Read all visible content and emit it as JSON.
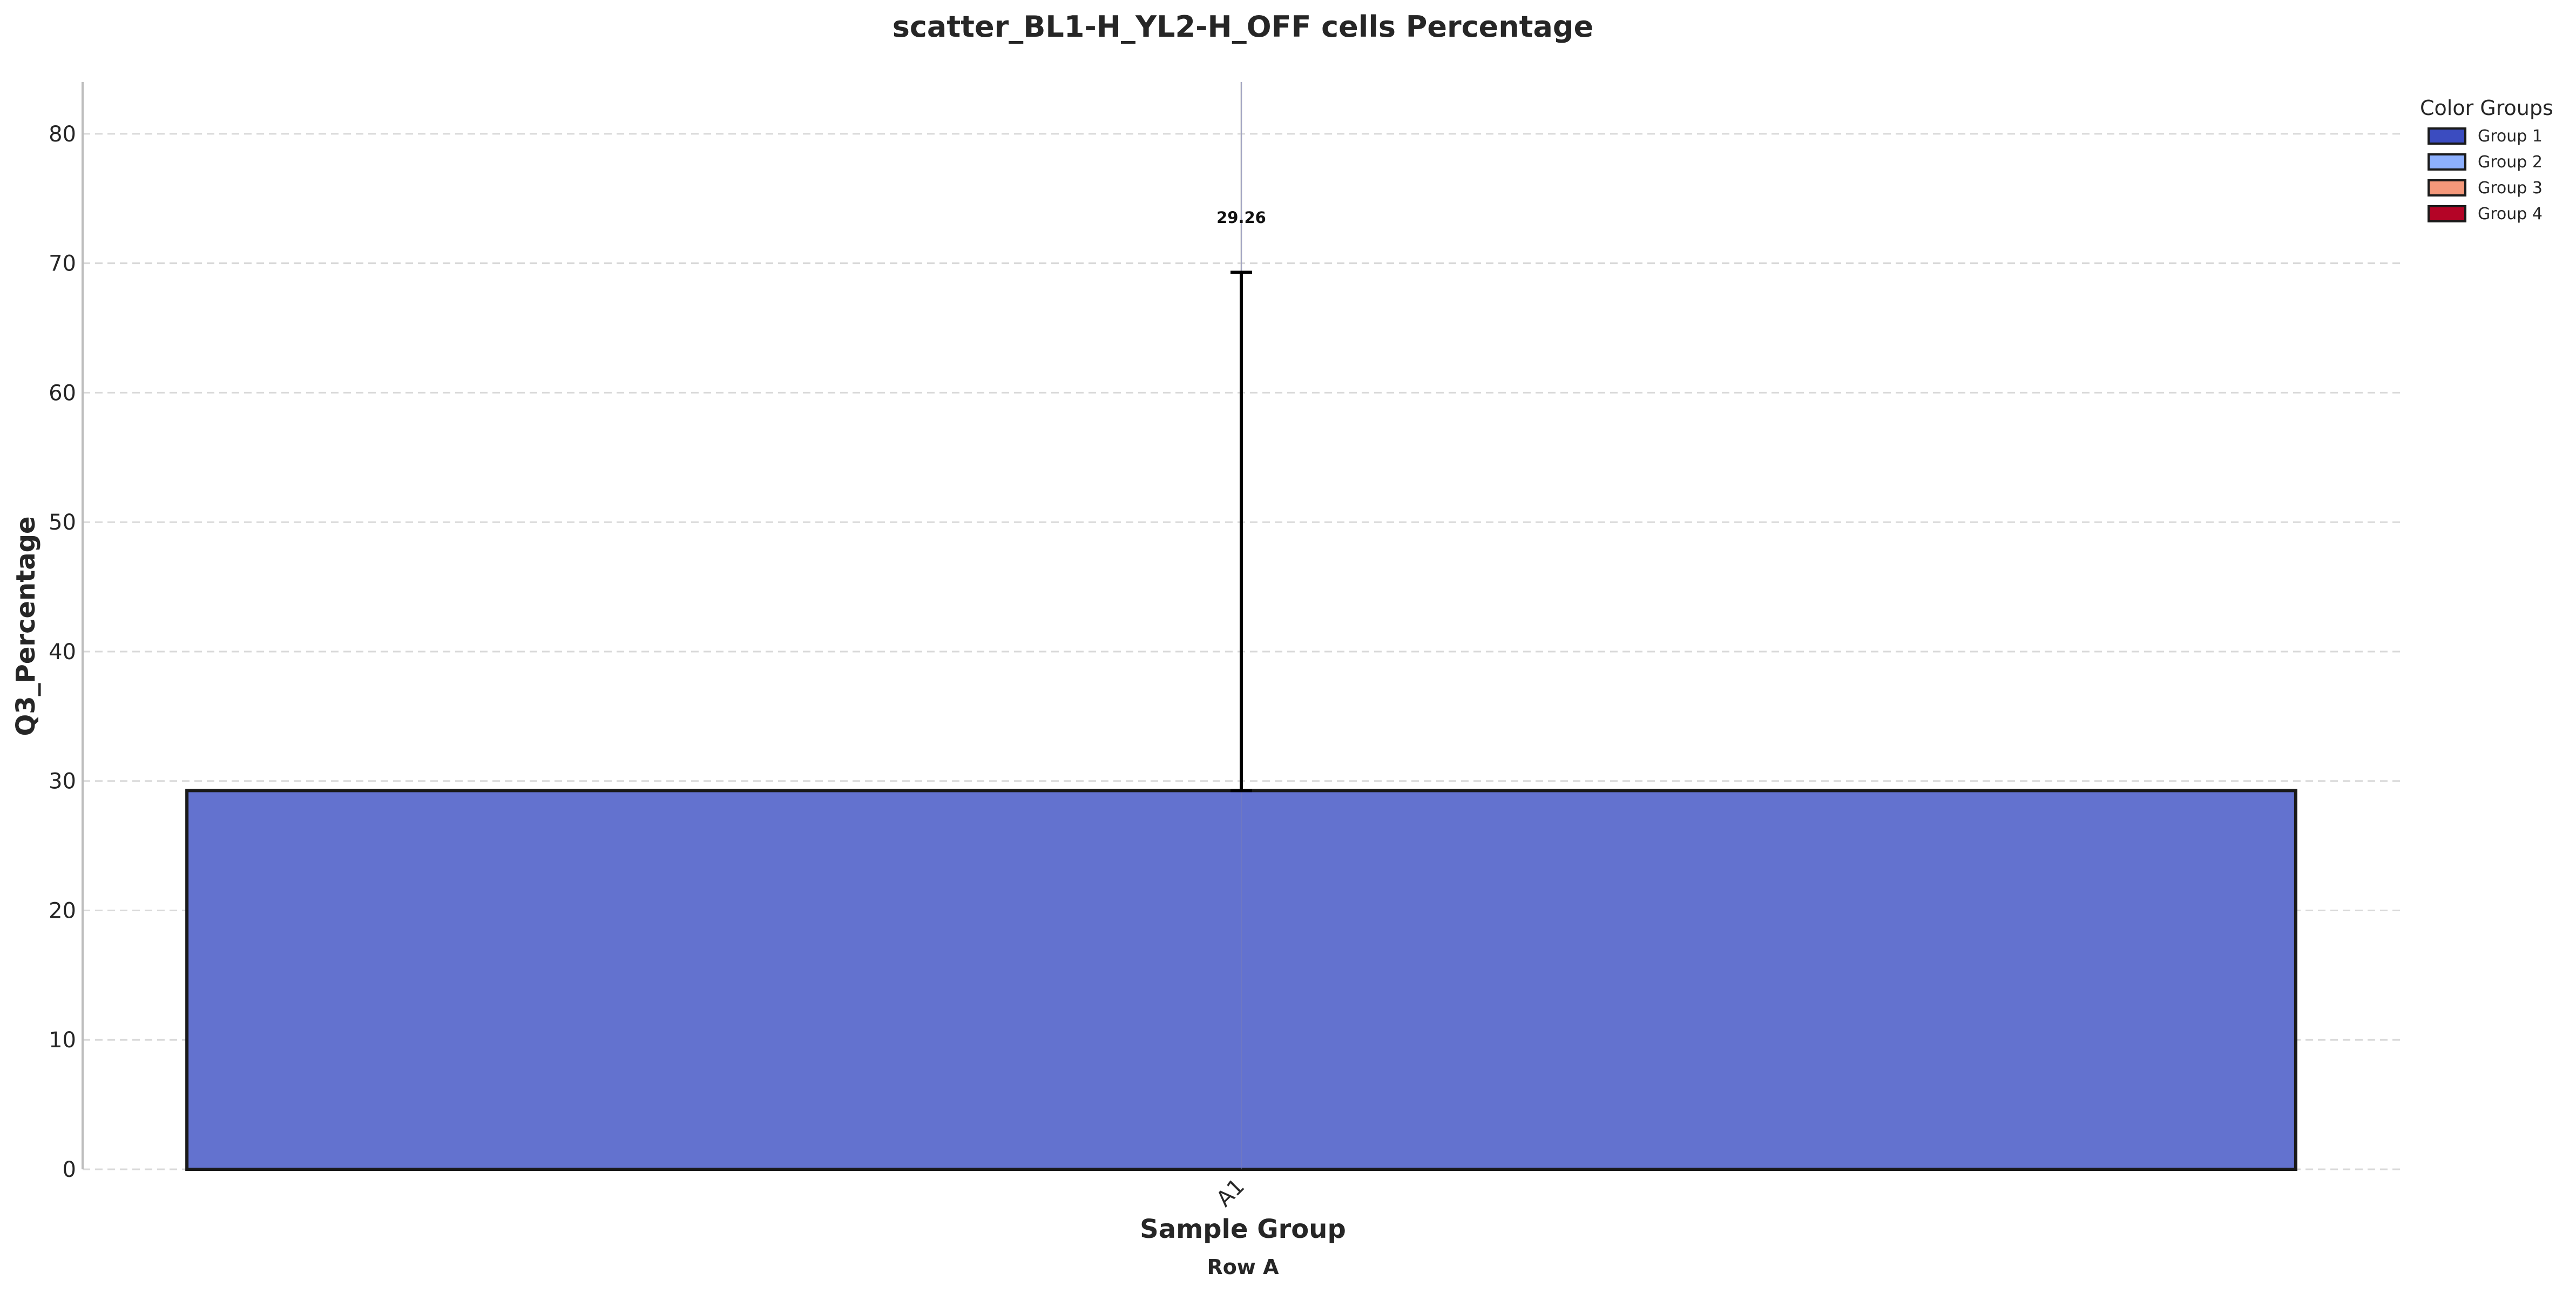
{
  "chart_data": {
    "type": "bar",
    "title": "scatter_BL1-H_YL2-H_OFF cells Percentage",
    "xlabel": "Sample Group",
    "x_sublabel": "Row A",
    "ylabel": "Q3_Percentage",
    "ylim": [
      0,
      84
    ],
    "yticks": [
      0,
      10,
      20,
      30,
      40,
      50,
      60,
      70,
      80
    ],
    "grid": "horizontal-dashed",
    "legend_position": "top-right",
    "categories": [
      "A1"
    ],
    "values": [
      29.26
    ],
    "error_upper": [
      69.3
    ],
    "data_labels": [
      "29.26"
    ],
    "bar_colors": [
      "#6372cf"
    ],
    "legend": {
      "title": "Color Groups",
      "entries": [
        {
          "label": "Group 1",
          "color": "#3b4cc0"
        },
        {
          "label": "Group 2",
          "color": "#8db0fe"
        },
        {
          "label": "Group 3",
          "color": "#f4987a"
        },
        {
          "label": "Group 4",
          "color": "#b40426"
        }
      ]
    }
  }
}
